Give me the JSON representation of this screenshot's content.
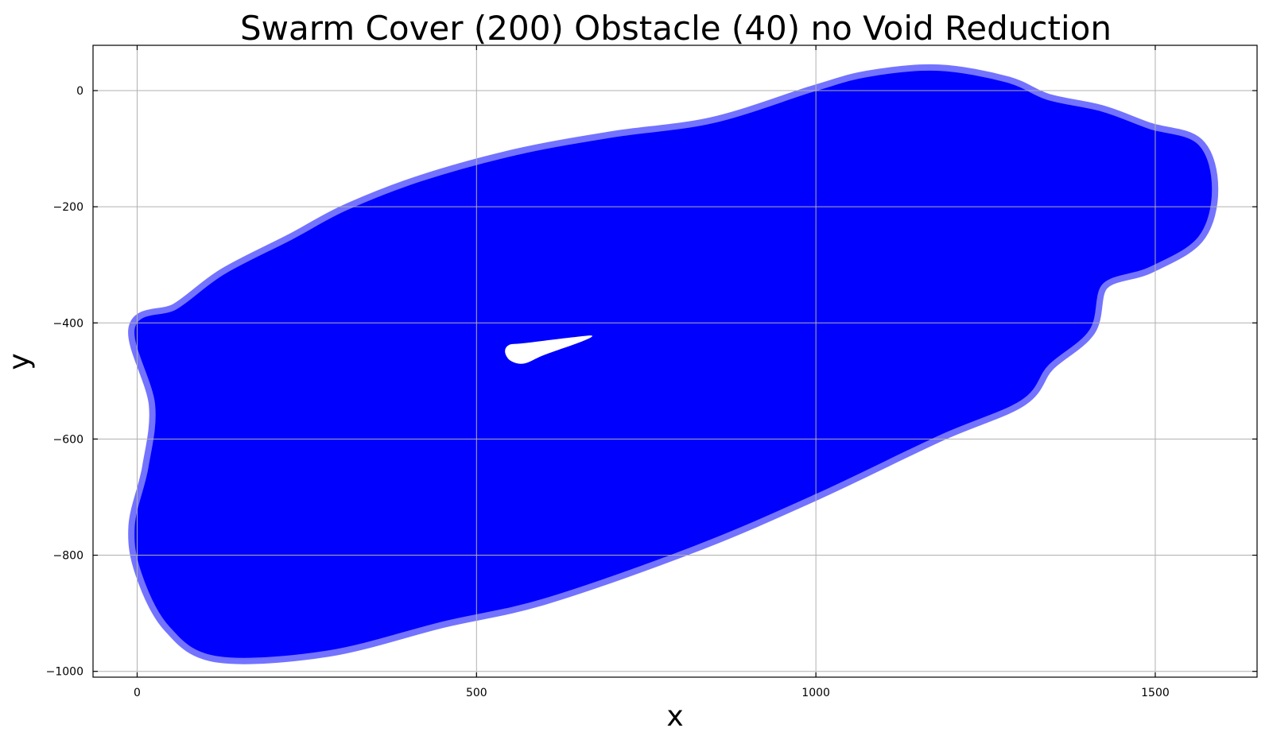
{
  "chart_data": {
    "type": "area",
    "title": "Swarm Cover (200) Obstacle (40) no Void Reduction",
    "xlabel": "x",
    "ylabel": "y",
    "xlim": [
      -65,
      1650
    ],
    "ylim": [
      -1010,
      78
    ],
    "xticks": [
      0,
      500,
      1000,
      1500
    ],
    "yticks": [
      0,
      -200,
      -400,
      -600,
      -800,
      -1000
    ],
    "grid": true,
    "fill_color": "#0000ff",
    "void_color": "#ffffff",
    "covered_region": [
      [
        0,
        -410
      ],
      [
        60,
        -380
      ],
      [
        130,
        -320
      ],
      [
        230,
        -260
      ],
      [
        310,
        -210
      ],
      [
        420,
        -160
      ],
      [
        560,
        -115
      ],
      [
        700,
        -85
      ],
      [
        850,
        -60
      ],
      [
        1000,
        -5
      ],
      [
        1080,
        20
      ],
      [
        1180,
        30
      ],
      [
        1280,
        10
      ],
      [
        1340,
        -20
      ],
      [
        1420,
        -40
      ],
      [
        1490,
        -70
      ],
      [
        1560,
        -95
      ],
      [
        1580,
        -170
      ],
      [
        1560,
        -250
      ],
      [
        1490,
        -300
      ],
      [
        1420,
        -330
      ],
      [
        1400,
        -410
      ],
      [
        1340,
        -470
      ],
      [
        1300,
        -530
      ],
      [
        1180,
        -590
      ],
      [
        1000,
        -690
      ],
      [
        820,
        -780
      ],
      [
        600,
        -870
      ],
      [
        450,
        -910
      ],
      [
        280,
        -960
      ],
      [
        120,
        -970
      ],
      [
        50,
        -920
      ],
      [
        10,
        -830
      ],
      [
        0,
        -750
      ],
      [
        20,
        -650
      ],
      [
        30,
        -540
      ]
    ],
    "uncovered_voids": [
      [
        [
          548,
          -438
        ],
        [
          570,
          -435
        ],
        [
          640,
          -425
        ],
        [
          670,
          -422
        ],
        [
          655,
          -432
        ],
        [
          600,
          -455
        ],
        [
          570,
          -470
        ],
        [
          550,
          -465
        ],
        [
          542,
          -450
        ]
      ]
    ]
  }
}
